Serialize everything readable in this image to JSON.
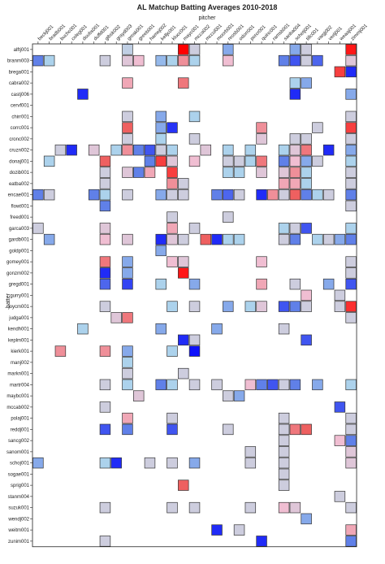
{
  "chart_data": {
    "type": "heatmap",
    "title": "AL Matchup Batting Averages 2010-2018",
    "xlabel": "pitcher",
    "ylabel": "batter",
    "x_categories": [
      "beckj001",
      "bradb001",
      "buchc001",
      "coleg001",
      "doubs001",
      "duffd001",
      "gibsk002",
      "grayd003",
      "greak001",
      "greeb001",
      "hamej002",
      "kelljc001",
      "klucc001",
      "mayc001",
      "mcca002",
      "mccul001",
      "moorb001",
      "nrosb001",
      "odorr001",
      "porcr001",
      "quinc001",
      "ramsb001",
      "sanba004",
      "schetj001",
      "tillc001",
      "vargj002",
      "verlj001",
      "weaaj001",
      "zimmj001"
    ],
    "y_categories": [
      "alftj001",
      "branm003",
      "brega001",
      "cabra002",
      "castj006",
      "cervf001",
      "chirr001",
      "corrc001",
      "cronc002",
      "cruzn002",
      "donaj001",
      "dozib001",
      "eatba002",
      "encae001",
      "flowt001",
      "freed001",
      "garca003",
      "gardb001",
      "goldp001",
      "gomey001",
      "gonzm002",
      "gregd001",
      "gurry001",
      "joycm001",
      "judga001",
      "kendh001",
      "keplm001",
      "kierk001",
      "manj002",
      "markn001",
      "martr004",
      "maybc001",
      "mccab002",
      "polaj001",
      "reddj001",
      "sancg002",
      "sanom001",
      "schoj001",
      "sogae001",
      "sprig001",
      "stanm004",
      "suzuk001",
      "wendj002",
      "weitm001",
      "zunim001"
    ],
    "cells": [
      [
        0,
        8,
        0.28
      ],
      [
        0,
        13,
        1.0
      ],
      [
        0,
        14,
        0.3
      ],
      [
        0,
        17,
        0.2
      ],
      [
        0,
        23,
        0.2
      ],
      [
        0,
        24,
        0.3
      ],
      [
        0,
        28,
        0.85
      ],
      [
        1,
        0,
        0.15
      ],
      [
        1,
        1,
        0.25
      ],
      [
        1,
        6,
        0.3
      ],
      [
        1,
        8,
        0.35
      ],
      [
        1,
        9,
        0.4
      ],
      [
        1,
        11,
        0.22
      ],
      [
        1,
        12,
        0.25
      ],
      [
        1,
        13,
        0.5
      ],
      [
        1,
        14,
        0.25
      ],
      [
        1,
        17,
        0.4
      ],
      [
        1,
        22,
        0.15
      ],
      [
        1,
        23,
        0.1
      ],
      [
        1,
        24,
        0.3
      ],
      [
        1,
        25,
        0.12
      ],
      [
        1,
        28,
        0.35
      ],
      [
        2,
        27,
        0.7
      ],
      [
        2,
        28,
        0.05
      ],
      [
        3,
        8,
        0.45
      ],
      [
        3,
        13,
        0.55
      ],
      [
        3,
        23,
        0.25
      ],
      [
        3,
        24,
        0.2
      ],
      [
        4,
        4,
        0.05
      ],
      [
        4,
        23,
        0.05
      ],
      [
        4,
        28,
        0.2
      ],
      [
        6,
        8,
        0.3
      ],
      [
        6,
        11,
        0.2
      ],
      [
        6,
        14,
        0.25
      ],
      [
        6,
        28,
        0.3
      ],
      [
        7,
        8,
        0.6
      ],
      [
        7,
        11,
        0.2
      ],
      [
        7,
        12,
        0.06
      ],
      [
        7,
        20,
        0.5
      ],
      [
        7,
        25,
        0.3
      ],
      [
        7,
        28,
        0.7
      ],
      [
        8,
        8,
        0.3
      ],
      [
        8,
        11,
        0.25
      ],
      [
        8,
        14,
        0.3
      ],
      [
        8,
        20,
        0.35
      ],
      [
        8,
        23,
        0.3
      ],
      [
        8,
        24,
        0.3
      ],
      [
        8,
        28,
        0.3
      ],
      [
        9,
        2,
        0.3
      ],
      [
        9,
        3,
        0.05
      ],
      [
        9,
        5,
        0.35
      ],
      [
        9,
        7,
        0.25
      ],
      [
        9,
        8,
        0.5
      ],
      [
        9,
        9,
        0.15
      ],
      [
        9,
        10,
        0.1
      ],
      [
        9,
        11,
        0.3
      ],
      [
        9,
        12,
        0.25
      ],
      [
        9,
        15,
        0.35
      ],
      [
        9,
        17,
        0.25
      ],
      [
        9,
        19,
        0.25
      ],
      [
        9,
        22,
        0.25
      ],
      [
        9,
        23,
        0.35
      ],
      [
        9,
        24,
        0.55
      ],
      [
        9,
        26,
        0.05
      ],
      [
        9,
        28,
        0.2
      ],
      [
        10,
        1,
        0.25
      ],
      [
        10,
        6,
        0.6
      ],
      [
        10,
        10,
        0.15
      ],
      [
        10,
        11,
        0.7
      ],
      [
        10,
        12,
        0.35
      ],
      [
        10,
        14,
        0.4
      ],
      [
        10,
        17,
        0.3
      ],
      [
        10,
        18,
        0.3
      ],
      [
        10,
        19,
        0.25
      ],
      [
        10,
        20,
        0.55
      ],
      [
        10,
        22,
        0.15
      ],
      [
        10,
        23,
        0.4
      ],
      [
        10,
        24,
        0.2
      ],
      [
        10,
        25,
        0.3
      ],
      [
        10,
        28,
        0.25
      ],
      [
        11,
        6,
        0.3
      ],
      [
        11,
        8,
        0.35
      ],
      [
        11,
        9,
        0.15
      ],
      [
        11,
        10,
        0.45
      ],
      [
        11,
        12,
        0.7
      ],
      [
        11,
        17,
        0.25
      ],
      [
        11,
        18,
        0.25
      ],
      [
        11,
        20,
        0.35
      ],
      [
        11,
        22,
        0.35
      ],
      [
        11,
        23,
        0.5
      ],
      [
        11,
        24,
        0.25
      ],
      [
        11,
        28,
        0.3
      ],
      [
        12,
        6,
        0.3
      ],
      [
        12,
        12,
        0.5
      ],
      [
        12,
        13,
        0.3
      ],
      [
        12,
        22,
        0.45
      ],
      [
        12,
        23,
        0.45
      ],
      [
        12,
        24,
        0.25
      ],
      [
        12,
        28,
        0.3
      ],
      [
        13,
        0,
        0.15
      ],
      [
        13,
        1,
        0.3
      ],
      [
        13,
        5,
        0.15
      ],
      [
        13,
        6,
        0.25
      ],
      [
        13,
        8,
        0.3
      ],
      [
        13,
        11,
        0.2
      ],
      [
        13,
        12,
        0.3
      ],
      [
        13,
        13,
        0.3
      ],
      [
        13,
        16,
        0.15
      ],
      [
        13,
        17,
        0.12
      ],
      [
        13,
        18,
        0.3
      ],
      [
        13,
        20,
        0.05
      ],
      [
        13,
        21,
        0.5
      ],
      [
        13,
        22,
        0.3
      ],
      [
        13,
        23,
        0.6
      ],
      [
        13,
        24,
        0.15
      ],
      [
        13,
        25,
        0.25
      ],
      [
        13,
        26,
        0.3
      ],
      [
        13,
        28,
        0.15
      ],
      [
        14,
        6,
        0.15
      ],
      [
        14,
        28,
        0.3
      ],
      [
        15,
        12,
        0.3
      ],
      [
        15,
        17,
        0.3
      ],
      [
        16,
        0,
        0.3
      ],
      [
        16,
        6,
        0.35
      ],
      [
        16,
        12,
        0.45
      ],
      [
        16,
        14,
        0.3
      ],
      [
        16,
        22,
        0.25
      ],
      [
        16,
        23,
        0.3
      ],
      [
        16,
        24,
        0.1
      ],
      [
        16,
        28,
        0.25
      ],
      [
        17,
        1,
        0.2
      ],
      [
        17,
        6,
        0.4
      ],
      [
        17,
        8,
        0.35
      ],
      [
        17,
        11,
        0.05
      ],
      [
        17,
        12,
        0.35
      ],
      [
        17,
        13,
        0.3
      ],
      [
        17,
        15,
        0.6
      ],
      [
        17,
        16,
        0.05
      ],
      [
        17,
        17,
        0.25
      ],
      [
        17,
        18,
        0.25
      ],
      [
        17,
        22,
        0.3
      ],
      [
        17,
        23,
        0.15
      ],
      [
        17,
        25,
        0.25
      ],
      [
        17,
        26,
        0.3
      ],
      [
        17,
        27,
        0.2
      ],
      [
        17,
        28,
        0.15
      ],
      [
        18,
        11,
        0.2
      ],
      [
        19,
        6,
        0.55
      ],
      [
        19,
        8,
        0.2
      ],
      [
        19,
        12,
        0.4
      ],
      [
        19,
        13,
        0.35
      ],
      [
        19,
        20,
        0.4
      ],
      [
        19,
        28,
        0.3
      ],
      [
        20,
        6,
        0.05
      ],
      [
        20,
        8,
        0.2
      ],
      [
        20,
        13,
        0.85
      ],
      [
        20,
        28,
        0.3
      ],
      [
        21,
        6,
        0.12
      ],
      [
        21,
        8,
        0.08
      ],
      [
        21,
        11,
        0.25
      ],
      [
        21,
        14,
        0.2
      ],
      [
        21,
        20,
        0.45
      ],
      [
        21,
        23,
        0.3
      ],
      [
        21,
        26,
        0.2
      ],
      [
        21,
        28,
        0.1
      ],
      [
        22,
        24,
        0.4
      ],
      [
        22,
        27,
        0.3
      ],
      [
        23,
        6,
        0.3
      ],
      [
        23,
        12,
        0.25
      ],
      [
        23,
        14,
        0.3
      ],
      [
        23,
        17,
        0.2
      ],
      [
        23,
        19,
        0.25
      ],
      [
        23,
        20,
        0.35
      ],
      [
        23,
        22,
        0.1
      ],
      [
        23,
        23,
        0.15
      ],
      [
        23,
        24,
        0.3
      ],
      [
        23,
        27,
        0.3
      ],
      [
        23,
        28,
        0.75
      ],
      [
        24,
        7,
        0.35
      ],
      [
        24,
        8,
        0.55
      ],
      [
        24,
        28,
        0.3
      ],
      [
        25,
        4,
        0.25
      ],
      [
        25,
        11,
        0.2
      ],
      [
        25,
        16,
        0.2
      ],
      [
        25,
        22,
        0.3
      ],
      [
        26,
        13,
        0.05
      ],
      [
        26,
        14,
        0.3
      ],
      [
        26,
        24,
        0.1
      ],
      [
        27,
        2,
        0.5
      ],
      [
        27,
        6,
        0.5
      ],
      [
        27,
        8,
        0.2
      ],
      [
        27,
        12,
        0.25
      ],
      [
        27,
        14,
        0.02
      ],
      [
        28,
        8,
        0.25
      ],
      [
        29,
        8,
        0.3
      ],
      [
        29,
        13,
        0.3
      ],
      [
        30,
        6,
        0.3
      ],
      [
        30,
        8,
        0.25
      ],
      [
        30,
        11,
        0.15
      ],
      [
        30,
        12,
        0.25
      ],
      [
        30,
        14,
        0.3
      ],
      [
        30,
        16,
        0.3
      ],
      [
        30,
        19,
        0.4
      ],
      [
        30,
        20,
        0.15
      ],
      [
        30,
        21,
        0.1
      ],
      [
        30,
        22,
        0.3
      ],
      [
        30,
        23,
        0.15
      ],
      [
        30,
        25,
        0.2
      ],
      [
        30,
        28,
        0.25
      ],
      [
        31,
        9,
        0.35
      ],
      [
        31,
        17,
        0.3
      ],
      [
        31,
        18,
        0.2
      ],
      [
        32,
        6,
        0.3
      ],
      [
        32,
        27,
        0.1
      ],
      [
        33,
        8,
        0.45
      ],
      [
        33,
        12,
        0.3
      ],
      [
        33,
        22,
        0.3
      ],
      [
        33,
        28,
        0.3
      ],
      [
        34,
        6,
        0.1
      ],
      [
        34,
        8,
        0.15
      ],
      [
        34,
        12,
        0.1
      ],
      [
        34,
        17,
        0.3
      ],
      [
        34,
        22,
        0.3
      ],
      [
        34,
        23,
        0.55
      ],
      [
        34,
        24,
        0.6
      ],
      [
        34,
        28,
        0.3
      ],
      [
        35,
        22,
        0.3
      ],
      [
        35,
        27,
        0.4
      ],
      [
        35,
        28,
        0.15
      ],
      [
        36,
        19,
        0.3
      ],
      [
        36,
        22,
        0.3
      ],
      [
        36,
        28,
        0.35
      ],
      [
        37,
        0,
        0.2
      ],
      [
        37,
        6,
        0.25
      ],
      [
        37,
        7,
        0.05
      ],
      [
        37,
        10,
        0.3
      ],
      [
        37,
        12,
        0.3
      ],
      [
        37,
        14,
        0.2
      ],
      [
        37,
        19,
        0.3
      ],
      [
        37,
        22,
        0.3
      ],
      [
        37,
        28,
        0.35
      ],
      [
        38,
        22,
        0.3
      ],
      [
        39,
        13,
        0.6
      ],
      [
        39,
        22,
        0.3
      ],
      [
        40,
        27,
        0.3
      ],
      [
        41,
        6,
        0.3
      ],
      [
        41,
        12,
        0.3
      ],
      [
        41,
        14,
        0.3
      ],
      [
        41,
        19,
        0.3
      ],
      [
        41,
        22,
        0.4
      ],
      [
        41,
        23,
        0.35
      ],
      [
        41,
        28,
        0.3
      ],
      [
        42,
        24,
        0.2
      ],
      [
        43,
        16,
        0.05
      ],
      [
        43,
        18,
        0.3
      ],
      [
        43,
        28,
        0.45
      ],
      [
        44,
        6,
        0.3
      ],
      [
        44,
        20,
        0.05
      ],
      [
        44,
        28,
        0.15
      ]
    ]
  }
}
